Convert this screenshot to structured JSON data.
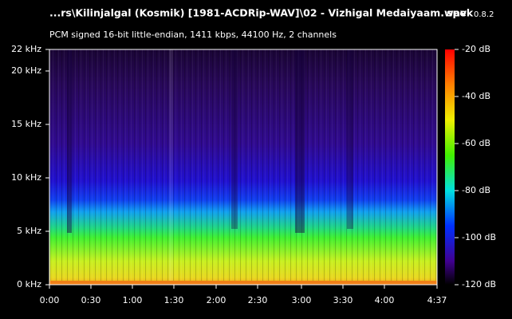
{
  "header": {
    "title": "...rs\\Kilinjalgal (Kosmik) [1981-ACDRip-WAV]\\02 - Vizhigal Medaiyaam.wav",
    "app": "spek",
    "version": "0.8.2",
    "subtitle": "PCM signed 16-bit little-endian, 1411 kbps, 44100 Hz, 2 channels"
  },
  "y_axis": {
    "ticks": [
      "22 kHz",
      "20 kHz",
      "15 kHz",
      "10 kHz",
      "5 kHz",
      "0 kHz"
    ]
  },
  "x_axis": {
    "ticks": [
      "0:00",
      "0:30",
      "1:00",
      "1:30",
      "2:00",
      "2:30",
      "3:00",
      "3:30",
      "4:00",
      "4:37"
    ]
  },
  "colorbar": {
    "ticks": [
      "-20 dB",
      "-40 dB",
      "-60 dB",
      "-80 dB",
      "-100 dB",
      "-120 dB"
    ]
  }
}
